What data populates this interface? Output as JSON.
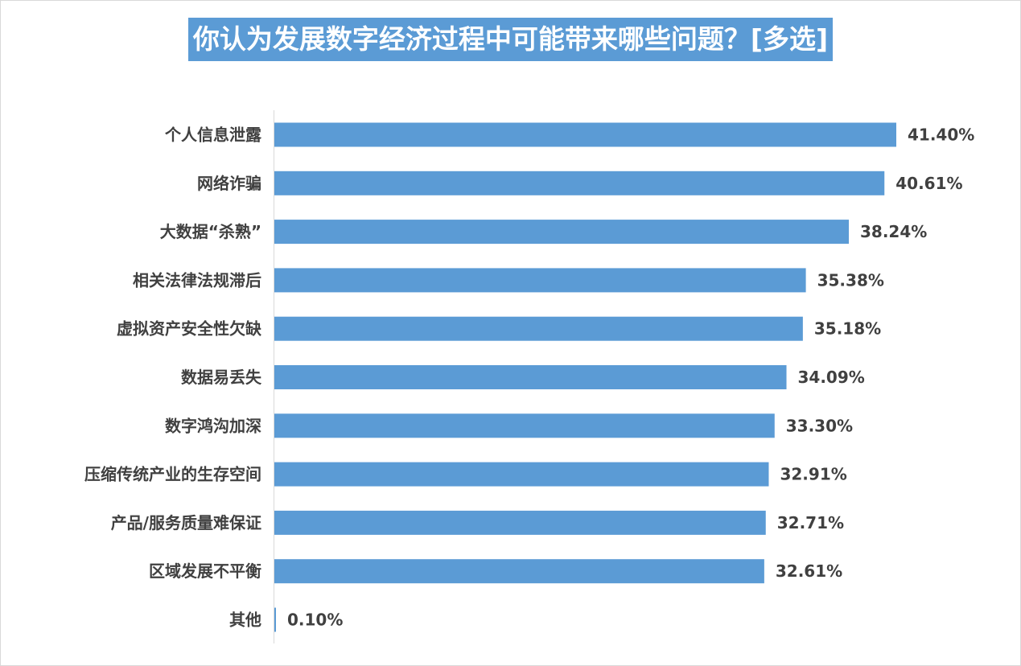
{
  "chart_data": {
    "type": "bar",
    "orientation": "horizontal",
    "title": "你认为发展数字经济过程中可能带来哪些问题？[多选]",
    "categories": [
      "个人信息泄露",
      "网络诈骗",
      "大数据“杀熟”",
      "相关法律法规滞后",
      "虚拟资产安全性欠缺",
      "数据易丢失",
      "数字鸿沟加深",
      "压缩传统产业的生存空间",
      "产品/服务质量难保证",
      "区域发展不平衡",
      "其他"
    ],
    "values": [
      41.4,
      40.61,
      38.24,
      35.38,
      35.18,
      34.09,
      33.3,
      32.91,
      32.71,
      32.61,
      0.1
    ],
    "value_labels": [
      "41.40%",
      "40.61%",
      "38.24%",
      "35.38%",
      "35.18%",
      "34.09%",
      "33.30%",
      "32.91%",
      "32.71%",
      "32.61%",
      "0.10%"
    ],
    "unit": "%",
    "xlim": [
      0,
      45
    ],
    "grid": false,
    "legend": "none",
    "bar_color": "#5b9bd5",
    "title_bg_color": "#5b9bd5",
    "title_text_color": "#ffffff",
    "label_color": "#404040"
  }
}
